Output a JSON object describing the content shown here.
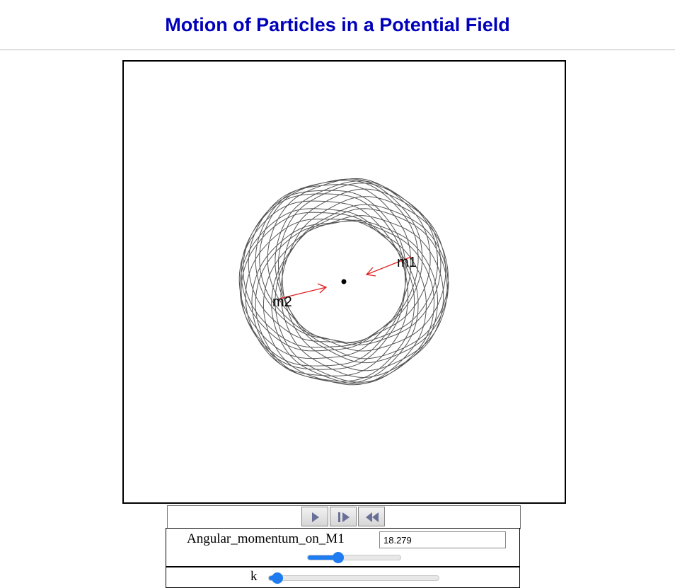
{
  "page": {
    "title": "Motion of Particles in a Potential Field"
  },
  "simulation": {
    "particle_labels": [
      "m1",
      "m2"
    ],
    "trajectory_color": "#555555",
    "arrow_color": "#e02020"
  },
  "controls": {
    "icons": [
      "play-icon",
      "step-forward-icon",
      "reset-icon"
    ]
  },
  "parameters": {
    "angular_momentum": {
      "label": "Angular_momentum_on_M1",
      "value": "18.279",
      "slider_fraction": 0.33
    },
    "k": {
      "label": "k",
      "slider_fraction": 0.05
    }
  }
}
